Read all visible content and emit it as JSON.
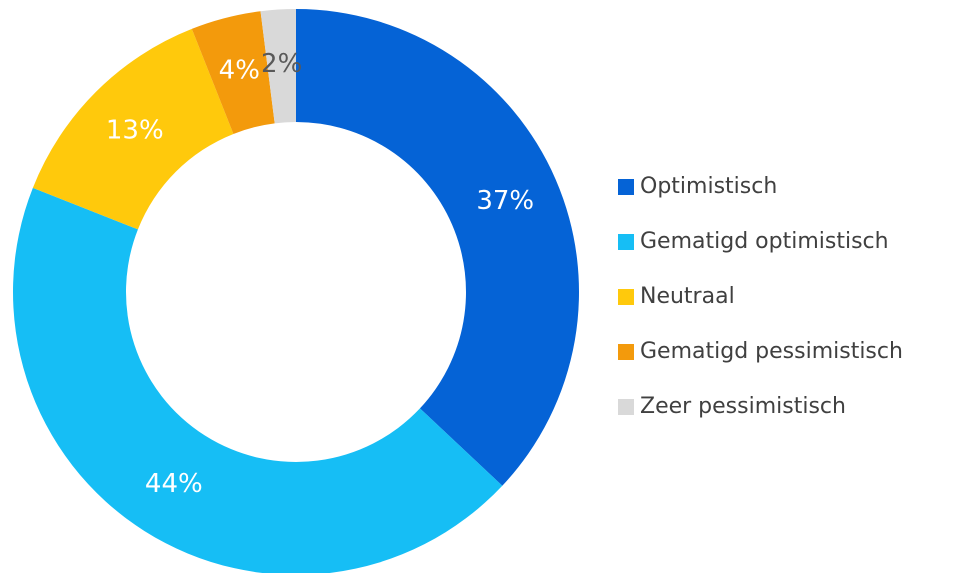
{
  "chart_data": {
    "type": "donut",
    "categories": [
      "Optimistisch",
      "Gematigd optimistisch",
      "Neutraal",
      "Gematigd pessimistisch",
      "Zeer pessimistisch"
    ],
    "values": [
      37,
      44,
      13,
      4,
      2
    ],
    "value_labels": [
      "37%",
      "44%",
      "13%",
      "4%",
      "2%"
    ],
    "colors": [
      "#0563d6",
      "#16bef5",
      "#ffc90c",
      "#f39a0c",
      "#d9d9d9"
    ],
    "legend": "right"
  }
}
